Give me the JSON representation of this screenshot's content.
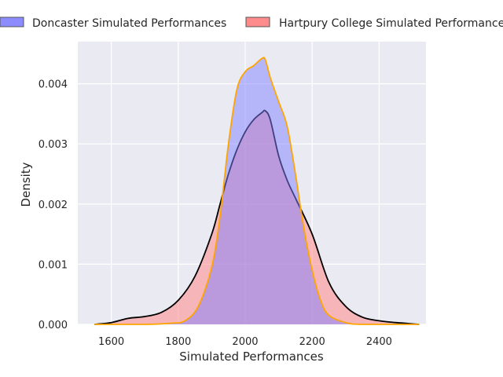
{
  "chart_data": {
    "type": "area",
    "title": "",
    "xlabel": "Simulated Performances",
    "ylabel": "Density",
    "xlim": [
      1500,
      2540
    ],
    "ylim": [
      0,
      0.0047
    ],
    "xticks": [
      1600,
      1800,
      2000,
      2200,
      2400
    ],
    "yticks": [
      0.0,
      0.001,
      0.002,
      0.003,
      0.004
    ],
    "xtick_labels": [
      "1600",
      "1800",
      "2000",
      "2200",
      "2400"
    ],
    "ytick_labels": [
      "0.000",
      "0.001",
      "0.002",
      "0.003",
      "0.004"
    ],
    "grid": true,
    "legend_position": "top",
    "series": [
      {
        "name": "Doncaster Simulated Performances",
        "fill_color": "#8080ff",
        "line_color": "#ffa500",
        "x": [
          1550,
          1700,
          1780,
          1820,
          1860,
          1900,
          1925,
          1950,
          1975,
          2000,
          2025,
          2050,
          2060,
          2075,
          2100,
          2125,
          2150,
          2175,
          2200,
          2225,
          2250,
          2300,
          2350,
          2520
        ],
        "y": [
          0.0,
          0.0,
          2e-05,
          6e-05,
          0.0003,
          0.00095,
          0.0018,
          0.003,
          0.0039,
          0.0042,
          0.0043,
          0.00442,
          0.0044,
          0.0041,
          0.0037,
          0.0033,
          0.0025,
          0.0016,
          0.0009,
          0.0004,
          0.00015,
          3e-05,
          0.0,
          0.0
        ]
      },
      {
        "name": "Hartpury College Simulated Performances",
        "fill_color": "#ff8080",
        "line_color": "#000000",
        "x": [
          1550,
          1600,
          1650,
          1700,
          1750,
          1800,
          1850,
          1900,
          1925,
          1950,
          1975,
          2000,
          2025,
          2050,
          2060,
          2075,
          2100,
          2125,
          2150,
          2200,
          2250,
          2300,
          2350,
          2400,
          2450,
          2520
        ],
        "y": [
          0.0,
          3e-05,
          0.0001,
          0.00013,
          0.0002,
          0.0004,
          0.0008,
          0.0015,
          0.002,
          0.0025,
          0.0029,
          0.0032,
          0.0034,
          0.00352,
          0.00355,
          0.0034,
          0.0028,
          0.0024,
          0.0021,
          0.0015,
          0.0007,
          0.0003,
          0.00012,
          6e-05,
          3e-05,
          0.0
        ]
      }
    ]
  }
}
